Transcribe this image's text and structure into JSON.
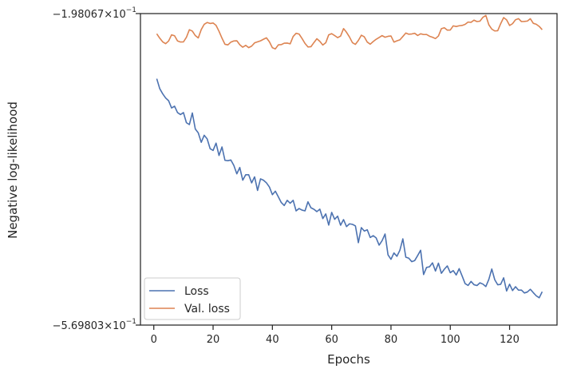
{
  "chart_data": {
    "type": "line",
    "xlabel": "Epochs",
    "ylabel": "Negative log-likelihood",
    "y_top_label": "−1.98067×10",
    "y_top_exp": "−1",
    "y_bottom_label": "−5.69803×10",
    "y_bottom_exp": "−1",
    "y_ticks": [
      -0.198067,
      -0.569803
    ],
    "ylim": [
      -0.569803,
      -0.198067
    ],
    "y_scale": "symlog",
    "xlim": [
      -4.5,
      136
    ],
    "x_ticks": [
      0,
      20,
      40,
      60,
      80,
      100,
      120
    ],
    "grid": false,
    "legend_position": "lower-left",
    "colors": {
      "Loss": "#4c72b0",
      "Val. loss": "#dd8452",
      "axes": "#262626"
    },
    "series": [
      {
        "name": "Loss",
        "x": [
          1,
          2,
          3,
          4,
          5,
          6,
          7,
          8,
          9,
          10,
          11,
          12,
          13,
          14,
          15,
          16,
          17,
          18,
          19,
          20,
          21,
          22,
          23,
          24,
          25,
          26,
          27,
          28,
          29,
          30,
          31,
          32,
          33,
          34,
          35,
          36,
          37,
          38,
          39,
          40,
          41,
          42,
          43,
          44,
          45,
          46,
          47,
          48,
          49,
          50,
          51,
          52,
          53,
          54,
          55,
          56,
          57,
          58,
          59,
          60,
          61,
          62,
          63,
          64,
          65,
          66,
          67,
          68,
          69,
          70,
          71,
          72,
          73,
          74,
          75,
          76,
          77,
          78,
          79,
          80,
          81,
          82,
          83,
          84,
          85,
          86,
          87,
          88,
          89,
          90,
          91,
          92,
          93,
          94,
          95,
          96,
          97,
          98,
          99,
          100,
          101,
          102,
          103,
          104,
          105,
          106,
          107,
          108,
          109,
          110,
          111,
          112,
          113,
          114,
          115,
          116,
          117,
          118,
          119,
          120,
          121,
          122,
          123,
          124,
          125,
          126,
          127,
          128,
          129,
          130,
          131
        ],
        "y": [
          -0.2758,
          -0.2876,
          -0.2938,
          -0.2988,
          -0.3021,
          -0.3107,
          -0.3086,
          -0.3162,
          -0.3186,
          -0.3162,
          -0.3283,
          -0.3305,
          -0.3167,
          -0.3358,
          -0.3404,
          -0.3517,
          -0.3433,
          -0.3476,
          -0.3593,
          -0.3614,
          -0.3527,
          -0.3674,
          -0.3572,
          -0.3732,
          -0.3736,
          -0.3728,
          -0.3793,
          -0.3893,
          -0.3817,
          -0.3969,
          -0.3904,
          -0.3904,
          -0.4001,
          -0.3929,
          -0.4091,
          -0.3953,
          -0.3969,
          -0.4001,
          -0.4051,
          -0.4142,
          -0.41,
          -0.4167,
          -0.4236,
          -0.4271,
          -0.4209,
          -0.4244,
          -0.4209,
          -0.4335,
          -0.4307,
          -0.4326,
          -0.4335,
          -0.4227,
          -0.4298,
          -0.4316,
          -0.4344,
          -0.4315,
          -0.4427,
          -0.4371,
          -0.4505,
          -0.4353,
          -0.4436,
          -0.4398,
          -0.4506,
          -0.4439,
          -0.4523,
          -0.449,
          -0.4496,
          -0.4514,
          -0.4715,
          -0.4535,
          -0.4576,
          -0.4561,
          -0.4653,
          -0.4631,
          -0.4658,
          -0.4744,
          -0.4691,
          -0.4611,
          -0.486,
          -0.4913,
          -0.4837,
          -0.4877,
          -0.4805,
          -0.4669,
          -0.4888,
          -0.49,
          -0.4941,
          -0.4928,
          -0.4868,
          -0.4805,
          -0.5095,
          -0.501,
          -0.5002,
          -0.4956,
          -0.5053,
          -0.4959,
          -0.508,
          -0.5031,
          -0.4992,
          -0.5073,
          -0.5048,
          -0.51,
          -0.5025,
          -0.5112,
          -0.5203,
          -0.5225,
          -0.5177,
          -0.5216,
          -0.5226,
          -0.5194,
          -0.5209,
          -0.5238,
          -0.5153,
          -0.5029,
          -0.5157,
          -0.5217,
          -0.5211,
          -0.5134,
          -0.5291,
          -0.521,
          -0.5286,
          -0.524,
          -0.5281,
          -0.528,
          -0.5315,
          -0.5303,
          -0.5271,
          -0.5311,
          -0.5349,
          -0.5372,
          -0.53
        ]
      },
      {
        "name": "Val. loss",
        "x": [
          1,
          2,
          3,
          4,
          5,
          6,
          7,
          8,
          9,
          10,
          11,
          12,
          13,
          14,
          15,
          16,
          17,
          18,
          19,
          20,
          21,
          22,
          23,
          24,
          25,
          26,
          27,
          28,
          29,
          30,
          31,
          32,
          33,
          34,
          35,
          36,
          37,
          38,
          39,
          40,
          41,
          42,
          43,
          44,
          45,
          46,
          47,
          48,
          49,
          50,
          51,
          52,
          53,
          54,
          55,
          56,
          57,
          58,
          59,
          60,
          61,
          62,
          63,
          64,
          65,
          66,
          67,
          68,
          69,
          70,
          71,
          72,
          73,
          74,
          75,
          76,
          77,
          78,
          79,
          80,
          81,
          82,
          83,
          84,
          85,
          86,
          87,
          88,
          89,
          90,
          91,
          92,
          93,
          94,
          95,
          96,
          97,
          98,
          99,
          100,
          101,
          102,
          103,
          104,
          105,
          106,
          107,
          108,
          109,
          110,
          111,
          112,
          113,
          114,
          115,
          116,
          117,
          118,
          119,
          120,
          121,
          122,
          123,
          124,
          125,
          126,
          127,
          128,
          129,
          130,
          131
        ],
        "y": [
          -0.2222,
          -0.2274,
          -0.2318,
          -0.234,
          -0.2308,
          -0.2234,
          -0.2245,
          -0.2307,
          -0.232,
          -0.2319,
          -0.2264,
          -0.2173,
          -0.219,
          -0.2243,
          -0.2271,
          -0.2172,
          -0.2109,
          -0.2087,
          -0.2099,
          -0.2093,
          -0.2121,
          -0.2192,
          -0.2274,
          -0.2347,
          -0.2354,
          -0.2321,
          -0.2307,
          -0.2305,
          -0.2352,
          -0.2382,
          -0.236,
          -0.2387,
          -0.2369,
          -0.233,
          -0.2318,
          -0.2306,
          -0.2287,
          -0.227,
          -0.2318,
          -0.2388,
          -0.2402,
          -0.2354,
          -0.2351,
          -0.2334,
          -0.2333,
          -0.2342,
          -0.2254,
          -0.2216,
          -0.2225,
          -0.2278,
          -0.2337,
          -0.2379,
          -0.2376,
          -0.2327,
          -0.2281,
          -0.2312,
          -0.2356,
          -0.2329,
          -0.2234,
          -0.222,
          -0.2243,
          -0.2268,
          -0.2249,
          -0.216,
          -0.2204,
          -0.226,
          -0.2328,
          -0.2348,
          -0.2301,
          -0.2239,
          -0.2258,
          -0.2321,
          -0.2346,
          -0.2314,
          -0.2287,
          -0.2266,
          -0.2243,
          -0.2263,
          -0.2252,
          -0.2248,
          -0.2321,
          -0.2306,
          -0.2294,
          -0.2254,
          -0.2213,
          -0.2227,
          -0.2224,
          -0.2216,
          -0.2242,
          -0.2222,
          -0.2231,
          -0.223,
          -0.2251,
          -0.2263,
          -0.2279,
          -0.2248,
          -0.2161,
          -0.215,
          -0.2178,
          -0.2177,
          -0.2127,
          -0.2135,
          -0.2126,
          -0.2122,
          -0.2109,
          -0.2082,
          -0.2085,
          -0.2059,
          -0.2076,
          -0.2071,
          -0.2025,
          -0.2003,
          -0.2114,
          -0.2166,
          -0.2188,
          -0.2185,
          -0.2101,
          -0.2028,
          -0.2056,
          -0.2123,
          -0.2101,
          -0.2054,
          -0.2041,
          -0.2076,
          -0.2074,
          -0.207,
          -0.2042,
          -0.2097,
          -0.2108,
          -0.2134,
          -0.2173
        ]
      }
    ]
  }
}
